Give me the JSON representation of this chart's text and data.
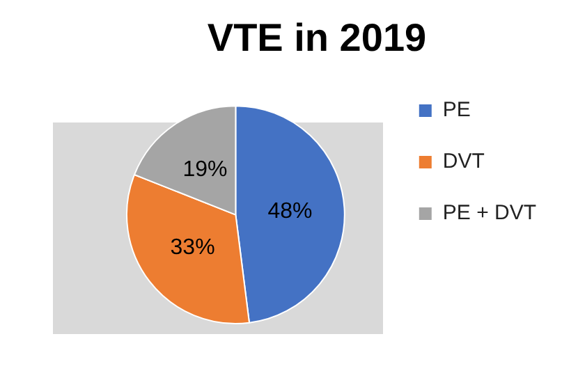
{
  "chart_data": {
    "type": "pie",
    "title": "VTE in 2019",
    "categories": [
      "PE",
      "DVT",
      "PE + DVT"
    ],
    "values": [
      48,
      33,
      19
    ],
    "colors": [
      "#4472c4",
      "#ed7d31",
      "#a5a5a5"
    ],
    "value_labels": [
      "48%",
      "33%",
      "19%"
    ],
    "legend": "right"
  }
}
